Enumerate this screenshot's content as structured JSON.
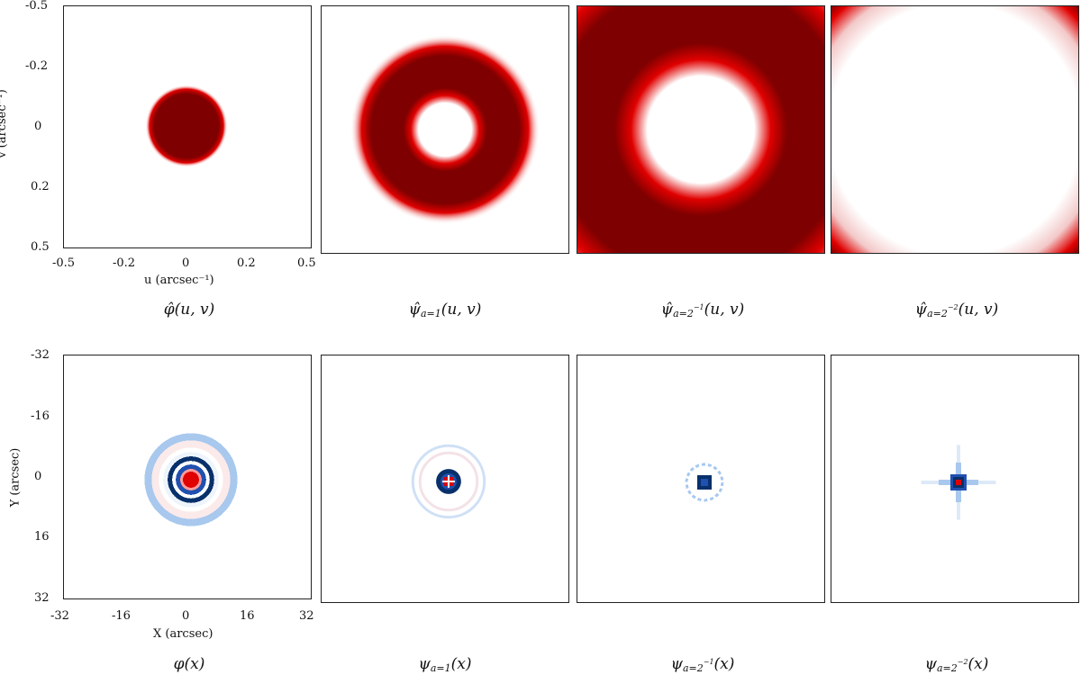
{
  "figure": {
    "top_row": {
      "ylabel": "v (arcsec⁻¹)",
      "xlabel": "u (arcsec⁻¹)",
      "yticks": [
        "-0.5",
        "-0.2",
        "0",
        "0.2",
        "0.5"
      ],
      "xticks": [
        "-0.5",
        "-0.2",
        "0",
        "0.2",
        "0.5"
      ],
      "captions": [
        {
          "main": "φ̂(u, v)",
          "sub": "",
          "sup": ""
        },
        {
          "main": "ψ̂",
          "sub": "a=1",
          "sup": "",
          "tail": "(u, v)"
        },
        {
          "main": "ψ̂",
          "sub": "a=2",
          "sup": "−1",
          "tail": "(u, v)"
        },
        {
          "main": "ψ̂",
          "sub": "a=2",
          "sup": "−2",
          "tail": "(u, v)"
        }
      ]
    },
    "bottom_row": {
      "ylabel": "Y (arcsec)",
      "xlabel": "X (arcsec)",
      "yticks": [
        "-32",
        "-16",
        "0",
        "16",
        "32"
      ],
      "xticks": [
        "-32",
        "-16",
        "0",
        "16",
        "32"
      ],
      "captions": [
        {
          "main": "φ(x)",
          "sub": "",
          "sup": ""
        },
        {
          "main": "ψ",
          "sub": "a=1",
          "sup": "",
          "tail": "(x)"
        },
        {
          "main": "ψ",
          "sub": "a=2",
          "sup": "−1",
          "tail": "(x)"
        },
        {
          "main": "ψ",
          "sub": "a=2",
          "sup": "−2",
          "tail": "(x)"
        }
      ]
    },
    "colors": {
      "dark_red": "#7f0000",
      "red": "#e00000",
      "dark_blue": "#08306b",
      "blue": "#2050b0",
      "light_blue": "#a8c8ee"
    }
  }
}
